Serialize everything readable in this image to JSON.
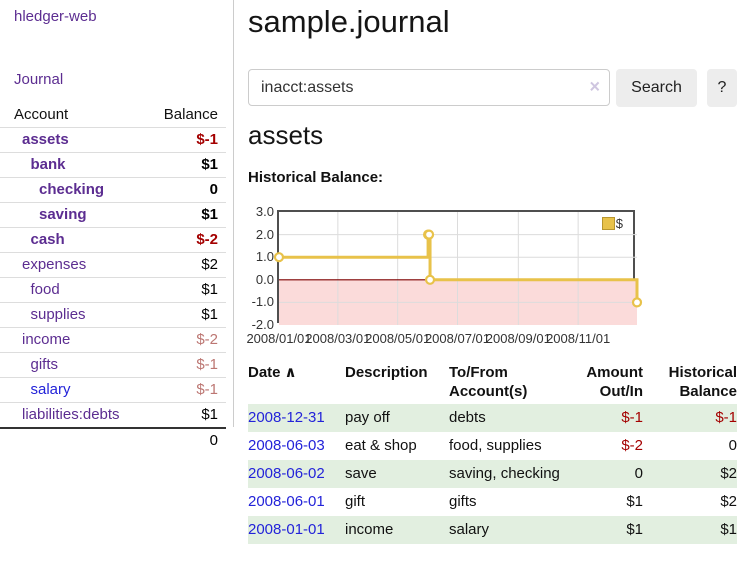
{
  "colors": {
    "link_purple": "#5c2d91",
    "link_blue": "#2323d9",
    "negative_strong": "#a40000",
    "negative_soft": "#bc7672",
    "row_stripe_green": "#e2efe0",
    "chart_line_gold": "#e8c24a",
    "chart_negative_pink": "#fbdbda",
    "chart_zero_line": "#7f0000",
    "chart_grid": "#dcdcdc"
  },
  "sidebar": {
    "brand": "hledger-web",
    "journal_link": "Journal",
    "columns": {
      "account": "Account",
      "balance": "Balance"
    },
    "rows": [
      {
        "account": "assets",
        "balance": "$-1",
        "level": 1,
        "bold": true,
        "balance_color": "negative_strong"
      },
      {
        "account": "bank",
        "balance": "$1",
        "level": 2,
        "bold": true,
        "balance_color": "normal"
      },
      {
        "account": "checking",
        "balance": "0",
        "level": 3,
        "bold": true,
        "balance_color": "normal"
      },
      {
        "account": "saving",
        "balance": "$1",
        "level": 3,
        "bold": true,
        "balance_color": "normal"
      },
      {
        "account": "cash",
        "balance": "$-2",
        "level": 2,
        "bold": true,
        "balance_color": "negative_strong"
      },
      {
        "account": "expenses",
        "balance": "$2",
        "level": 1,
        "bold": false,
        "balance_color": "normal"
      },
      {
        "account": "food",
        "balance": "$1",
        "level": 2,
        "bold": false,
        "balance_color": "normal"
      },
      {
        "account": "supplies",
        "balance": "$1",
        "level": 2,
        "bold": false,
        "balance_color": "normal"
      },
      {
        "account": "income",
        "balance": "$-2",
        "level": 1,
        "bold": false,
        "balance_color": "negative_soft"
      },
      {
        "account": "gifts",
        "balance": "$-1",
        "level": 2,
        "bold": false,
        "balance_color": "negative_soft"
      },
      {
        "account": "salary",
        "balance": "$-1",
        "level": 2,
        "bold": false,
        "balance_color": "negative_soft",
        "link_color": "blue"
      },
      {
        "account": "liabilities:debts",
        "balance": "$1",
        "level": 1,
        "bold": false,
        "balance_color": "normal"
      }
    ],
    "total": "0"
  },
  "header": {
    "title": "sample.journal"
  },
  "search": {
    "value": "inacct:assets",
    "clear_icon": "×",
    "search_button": "Search",
    "help_button": "?"
  },
  "account_view": {
    "heading": "assets",
    "section_label": "Historical Balance:"
  },
  "chart_data": {
    "type": "line",
    "step": true,
    "title": "Historical Balance",
    "legend": "$",
    "legend_position": "top-right",
    "grid": true,
    "negative_region_shaded": true,
    "x_range": [
      "2008-01-01",
      "2008-12-31"
    ],
    "ylim": [
      -2,
      3
    ],
    "y_ticks": [
      {
        "value": 3,
        "label": "3.0"
      },
      {
        "value": 2,
        "label": "2.0"
      },
      {
        "value": 1,
        "label": "1.0"
      },
      {
        "value": 0,
        "label": "0.0"
      },
      {
        "value": -1,
        "label": "-1.0"
      },
      {
        "value": -2,
        "label": "-2.0"
      }
    ],
    "x_ticks": [
      {
        "date": "2008-01-01",
        "label": "2008/01/01"
      },
      {
        "date": "2008-03-01",
        "label": "2008/03/01"
      },
      {
        "date": "2008-05-01",
        "label": "2008/05/01"
      },
      {
        "date": "2008-07-01",
        "label": "2008/07/01"
      },
      {
        "date": "2008-09-01",
        "label": "2008/09/01"
      },
      {
        "date": "2008-11-01",
        "label": "2008/11/01"
      }
    ],
    "series": [
      {
        "name": "$",
        "points": [
          {
            "date": "2008-01-01",
            "value": 1
          },
          {
            "date": "2008-06-01",
            "value": 2
          },
          {
            "date": "2008-06-02",
            "value": 2
          },
          {
            "date": "2008-06-03",
            "value": 0
          },
          {
            "date": "2008-12-31",
            "value": -1
          }
        ]
      }
    ]
  },
  "register": {
    "columns": [
      {
        "label": "Date",
        "sort_icon": "∧",
        "align": "left"
      },
      {
        "label": "Description",
        "align": "left"
      },
      {
        "label": "To/From Account(s)",
        "align": "left"
      },
      {
        "label": "Amount Out/In",
        "align": "right"
      },
      {
        "label": "Historical Balance",
        "align": "right"
      }
    ],
    "rows": [
      {
        "date": "2008-12-31",
        "description": "pay off",
        "accounts": "debts",
        "amount": "$-1",
        "balance": "$-1",
        "amount_negative": true,
        "balance_negative": true
      },
      {
        "date": "2008-06-03",
        "description": "eat & shop",
        "accounts": "food, supplies",
        "amount": "$-2",
        "balance": "0",
        "amount_negative": true,
        "balance_negative": false
      },
      {
        "date": "2008-06-02",
        "description": "save",
        "accounts": "saving, checking",
        "amount": "0",
        "balance": "$2",
        "amount_negative": false,
        "balance_negative": false
      },
      {
        "date": "2008-06-01",
        "description": "gift",
        "accounts": "gifts",
        "amount": "$1",
        "balance": "$2",
        "amount_negative": false,
        "balance_negative": false
      },
      {
        "date": "2008-01-01",
        "description": "income",
        "accounts": "salary",
        "amount": "$1",
        "balance": "$1",
        "amount_negative": false,
        "balance_negative": false
      }
    ]
  }
}
